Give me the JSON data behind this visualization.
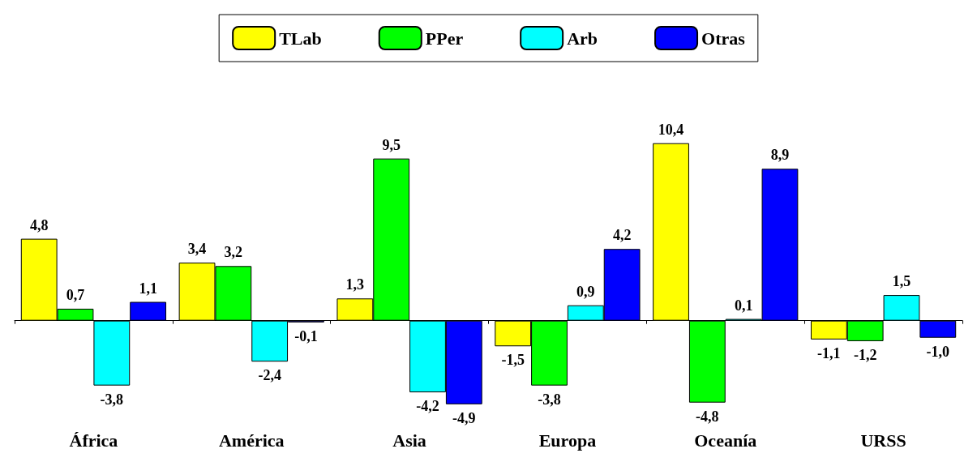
{
  "chart_data": {
    "type": "bar",
    "categories": [
      "África",
      "América",
      "Asia",
      "Europa",
      "Oceanía",
      "URSS"
    ],
    "legend": "top",
    "series": [
      {
        "name": "TLab",
        "color": "#ffff00",
        "values": [
          4.8,
          3.4,
          1.3,
          -1.5,
          10.4,
          -1.1
        ],
        "value_labels": [
          "4,8",
          "3,4",
          "1,3",
          "-1,5",
          "10,4",
          "-1,1"
        ]
      },
      {
        "name": "PPer",
        "color": "#00ff00",
        "values": [
          0.7,
          3.2,
          9.5,
          -3.8,
          -4.8,
          -1.2
        ],
        "value_labels": [
          "0,7",
          "3,2",
          "9,5",
          "-3,8",
          "-4,8",
          "-1,2"
        ]
      },
      {
        "name": "Arb",
        "color": "#00ffff",
        "values": [
          -3.8,
          -2.4,
          -4.2,
          0.9,
          0.1,
          1.5
        ],
        "value_labels": [
          "-3,8",
          "-2,4",
          "-4,2",
          "0,9",
          "0,1",
          "1,5"
        ]
      },
      {
        "name": "Otras",
        "color": "#0000ff",
        "values": [
          1.1,
          -0.1,
          -4.9,
          4.2,
          8.9,
          -1.0
        ],
        "value_labels": [
          "1,1",
          "-0,1",
          "-4,9",
          "4,2",
          "8,9",
          "-1,0"
        ]
      }
    ]
  }
}
